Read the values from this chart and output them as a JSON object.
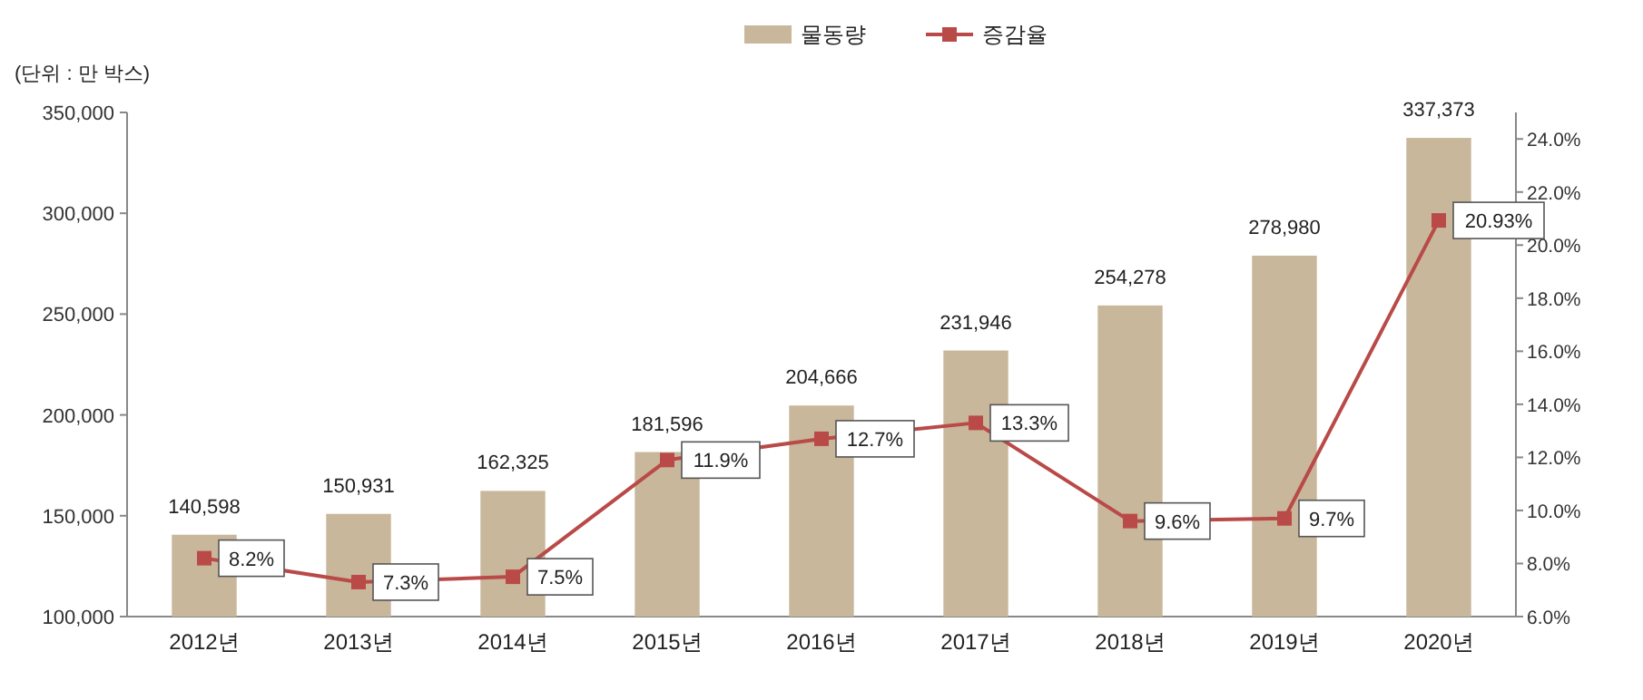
{
  "chart_data": {
    "type": "bar",
    "categories": [
      "2012년",
      "2013년",
      "2014년",
      "2015년",
      "2016년",
      "2017년",
      "2018년",
      "2019년",
      "2020년"
    ],
    "series": [
      {
        "name": "물동량",
        "color": "#c9b79c",
        "values": [
          140598,
          150931,
          162325,
          181596,
          204666,
          231946,
          254278,
          278980,
          337373
        ],
        "value_labels": [
          "140,598",
          "150,931",
          "162,325",
          "181,596",
          "204,666",
          "231,946",
          "254,278",
          "278,980",
          "337,373"
        ]
      },
      {
        "name": "증감율",
        "type": "line",
        "axis": "y2",
        "color": "#b94a48",
        "marker": "square",
        "values": [
          8.2,
          7.3,
          7.5,
          11.9,
          12.7,
          13.3,
          9.6,
          9.7,
          20.93
        ],
        "value_labels": [
          "8.2%",
          "7.3%",
          "7.5%",
          "11.9%",
          "12.7%",
          "13.3%",
          "9.6%",
          "9.7%",
          "20.93%"
        ]
      }
    ],
    "ylim": [
      100000,
      350000
    ],
    "yticks": [
      {
        "value": 100000,
        "label": "100,000"
      },
      {
        "value": 150000,
        "label": "150,000"
      },
      {
        "value": 200000,
        "label": "200,000"
      },
      {
        "value": 250000,
        "label": "250,000"
      },
      {
        "value": 300000,
        "label": "300,000"
      },
      {
        "value": 350000,
        "label": "350,000"
      }
    ],
    "y2lim": [
      6,
      25
    ],
    "y2ticks": [
      {
        "value": 6,
        "label": "6.0%"
      },
      {
        "value": 8,
        "label": "8.0%"
      },
      {
        "value": 10,
        "label": "10.0%"
      },
      {
        "value": 12,
        "label": "12.0%"
      },
      {
        "value": 14,
        "label": "14.0%"
      },
      {
        "value": 16,
        "label": "16.0%"
      },
      {
        "value": 18,
        "label": "18.0%"
      },
      {
        "value": 20,
        "label": "20.0%"
      },
      {
        "value": 22,
        "label": "22.0%"
      },
      {
        "value": 24,
        "label": "24.0%"
      }
    ],
    "legend": "top",
    "grid": false,
    "annotations": [
      "(단위 : 만 박스)"
    ]
  }
}
